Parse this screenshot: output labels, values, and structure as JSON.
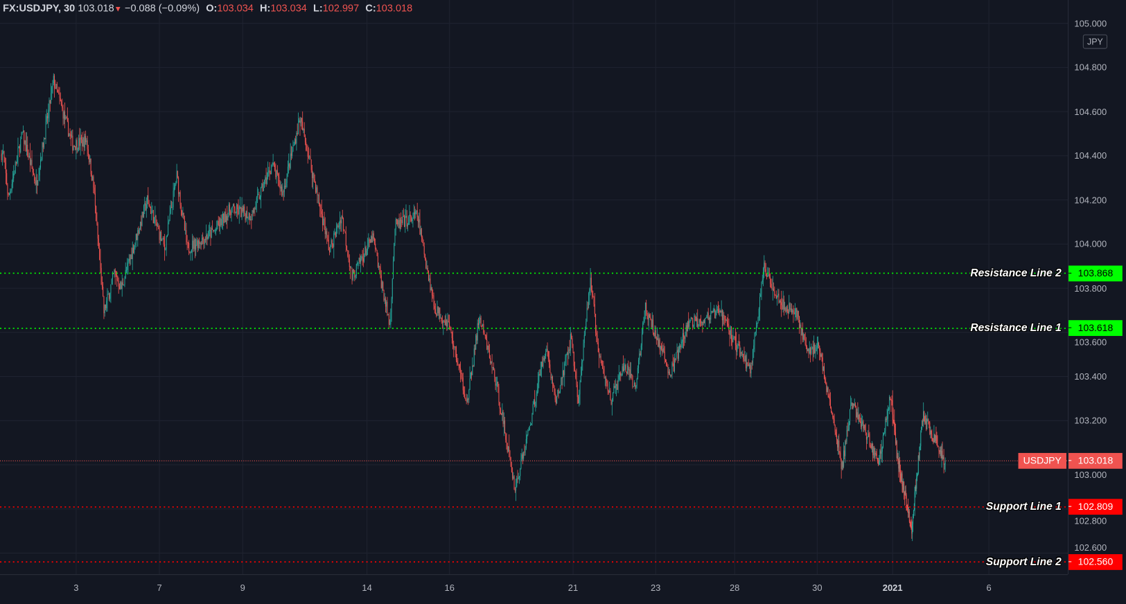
{
  "header": {
    "symbol": "FX:USDJPY, 30",
    "last": "103.018",
    "change": "−0.088 (−0.09%)",
    "o_label": "O:",
    "o": "103.034",
    "h_label": "H:",
    "h": "103.034",
    "l_label": "L:",
    "l": "102.997",
    "c_label": "C:",
    "c": "103.018"
  },
  "currency_badge": "JPY",
  "colors": {
    "background": "#131722",
    "grid": "#1f2330",
    "up": "#26a69a",
    "down": "#ef5350",
    "resistance": "#00ff00",
    "support": "#ff0000",
    "last_price": "#f05350"
  },
  "chart_data": {
    "type": "candlestick",
    "symbol": "USDJPY",
    "interval": "30",
    "ylim": [
      102.55,
      105.0
    ],
    "y_ticks": [
      "105.000",
      "104.800",
      "104.600",
      "104.400",
      "104.200",
      "104.000",
      "103.800",
      "103.600",
      "103.400",
      "103.200",
      "103.000",
      "102.800",
      "102.600"
    ],
    "x_ticks": [
      "3",
      "7",
      "9",
      "14",
      "16",
      "21",
      "23",
      "28",
      "30",
      "2021",
      "6"
    ],
    "grid": true,
    "last_price": {
      "label": "USDJPY",
      "value": "103.018"
    },
    "horizontal_lines": [
      {
        "name": "Resistance Line 2",
        "price": "103.868",
        "color": "#00ff00",
        "kind": "resistance"
      },
      {
        "name": "Resistance Line 1",
        "price": "103.618",
        "color": "#00ff00",
        "kind": "resistance"
      },
      {
        "name": "Support Line 1",
        "price": "102.809",
        "color": "#ff0000",
        "kind": "support"
      },
      {
        "name": "Support Line 2",
        "price": "102.560",
        "color": "#ff0000",
        "kind": "support"
      }
    ],
    "approx_price_path": [
      [
        "Dec 1 06:00",
        104.41
      ],
      [
        "Dec 1 09:00",
        104.21
      ],
      [
        "Dec 1 17:00",
        104.5
      ],
      [
        "Dec 2 01:00",
        104.27
      ],
      [
        "Dec 2 11:00",
        104.74
      ],
      [
        "Dec 2 22:00",
        104.45
      ],
      [
        "Dec 3 06:00",
        104.47
      ],
      [
        "Dec 3 10:00",
        104.26
      ],
      [
        "Dec 3 16:00",
        103.69
      ],
      [
        "Dec 3 22:00",
        103.87
      ],
      [
        "Dec 4 02:00",
        103.8
      ],
      [
        "Dec 4 17:00",
        104.2
      ],
      [
        "Dec 7 03:00",
        103.98
      ],
      [
        "Dec 7 10:00",
        104.31
      ],
      [
        "Dec 7 16:00",
        103.98
      ],
      [
        "Dec 8 08:00",
        104.06
      ],
      [
        "Dec 8 17:00",
        104.16
      ],
      [
        "Dec 9 05:00",
        104.13
      ],
      [
        "Dec 9 17:00",
        104.36
      ],
      [
        "Dec 9 23:00",
        104.23
      ],
      [
        "Dec 10 09:00",
        104.57
      ],
      [
        "Dec 10 18:00",
        104.26
      ],
      [
        "Dec 11 02:00",
        103.97
      ],
      [
        "Dec 11 09:00",
        104.13
      ],
      [
        "Dec 11 15:00",
        103.85
      ],
      [
        "Dec 14 03:00",
        104.03
      ],
      [
        "Dec 14 13:00",
        103.63
      ],
      [
        "Dec 14 16:00",
        104.08
      ],
      [
        "Dec 15 05:00",
        104.13
      ],
      [
        "Dec 15 15:00",
        103.71
      ],
      [
        "Dec 15 23:00",
        103.64
      ],
      [
        "Dec 16 10:00",
        103.28
      ],
      [
        "Dec 16 17:00",
        103.67
      ],
      [
        "Dec 17 03:00",
        103.37
      ],
      [
        "Dec 17 14:00",
        102.89
      ],
      [
        "Dec 17 21:00",
        103.12
      ],
      [
        "Dec 18 08:00",
        103.54
      ],
      [
        "Dec 18 14:00",
        103.28
      ],
      [
        "Dec 18 23:00",
        103.58
      ],
      [
        "Dec 21 03:00",
        103.28
      ],
      [
        "Dec 21 10:00",
        103.85
      ],
      [
        "Dec 21 15:00",
        103.48
      ],
      [
        "Dec 21 22:00",
        103.3
      ],
      [
        "Dec 22 06:00",
        103.45
      ],
      [
        "Dec 22 12:00",
        103.34
      ],
      [
        "Dec 22 18:00",
        103.71
      ],
      [
        "Dec 23 09:00",
        103.41
      ],
      [
        "Dec 23 20:00",
        103.64
      ],
      [
        "Dec 24 16:00",
        103.69
      ],
      [
        "Dec 28 01:00",
        103.54
      ],
      [
        "Dec 28 09:00",
        103.43
      ],
      [
        "Dec 28 17:00",
        103.89
      ],
      [
        "Dec 29 04:00",
        103.72
      ],
      [
        "Dec 29 12:00",
        103.69
      ],
      [
        "Dec 29 18:00",
        103.51
      ],
      [
        "Dec 30 01:00",
        103.54
      ],
      [
        "Dec 30 08:00",
        103.28
      ],
      [
        "Dec 30 16:00",
        102.99
      ],
      [
        "Dec 30 22:00",
        103.28
      ],
      [
        "Dec 31 07:00",
        103.15
      ],
      [
        "Dec 31 15:00",
        103.01
      ],
      [
        "Dec 31 23:00",
        103.32
      ],
      [
        "Jan 1 04:00",
        103.03
      ],
      [
        "Jan 1 16:00",
        102.71
      ],
      [
        "Jan 4 01:00",
        103.22
      ],
      [
        "Jan 4 09:00",
        103.12
      ],
      [
        "Jan 4 17:00",
        103.018
      ]
    ]
  }
}
